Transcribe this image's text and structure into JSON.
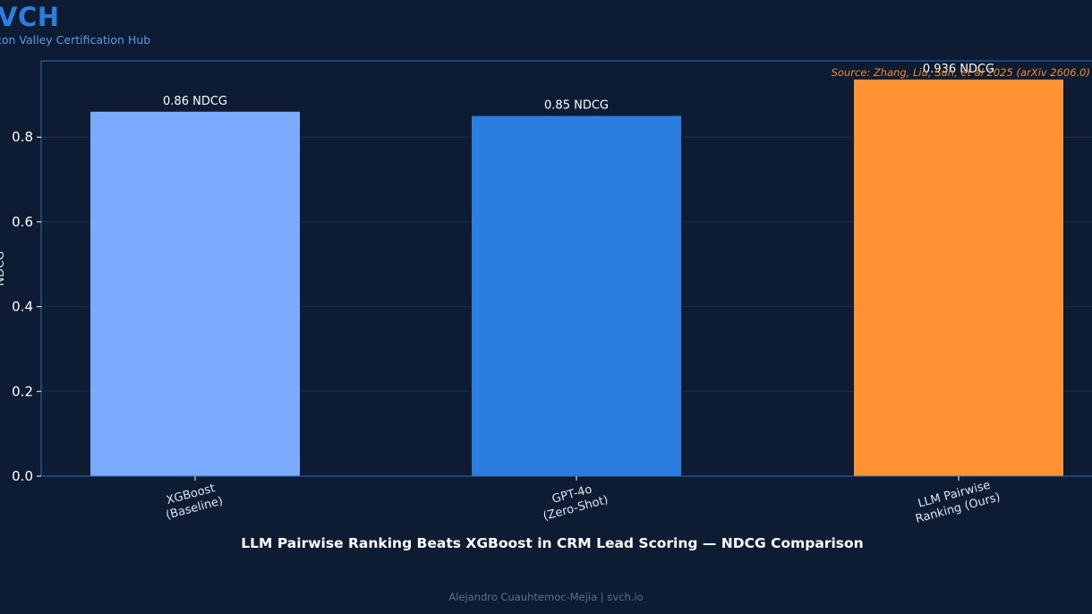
{
  "brand": {
    "logo": "VCH",
    "subtitle": "con Valley Certification Hub"
  },
  "footer": "Alejandro Cuauhtemoc-Mejia  |  svch.io",
  "colors": {
    "background": "#0d1b33",
    "axis": "#2f6db8",
    "grid": "#1e3150",
    "baseline_bar": "#7aabff",
    "gpt_bar": "#2b7de0",
    "ours_bar": "#ff9233"
  },
  "chart_data": {
    "type": "bar",
    "title": "LLM Pairwise Ranking Beats XGBoost in CRM Lead Scoring — NDCG Comparison",
    "source_note": "Source: Zhang, Liu, Sun, et al 2025 (arXiv 2606.0)",
    "categories": [
      [
        "XGBoost",
        "(Baseline)"
      ],
      [
        "GPT-4o",
        "(Zero-Shot)"
      ],
      [
        "LLM Pairwise",
        "Ranking (Ours)"
      ]
    ],
    "values": [
      0.86,
      0.85,
      0.936
    ],
    "data_labels": [
      "0.86 NDCG",
      "0.85 NDCG",
      "0.936 NDCG"
    ],
    "bar_colors": [
      "#7aabff",
      "#2b7de0",
      "#ff9233"
    ],
    "ylabel": "NDCG",
    "ylim": [
      0,
      0.98
    ],
    "yticks": [
      0.0,
      0.2,
      0.4,
      0.6,
      0.8
    ],
    "ytick_labels": [
      "0.0",
      "0.2",
      "0.4",
      "0.6",
      "0.8"
    ],
    "grid": true,
    "legend": false
  }
}
